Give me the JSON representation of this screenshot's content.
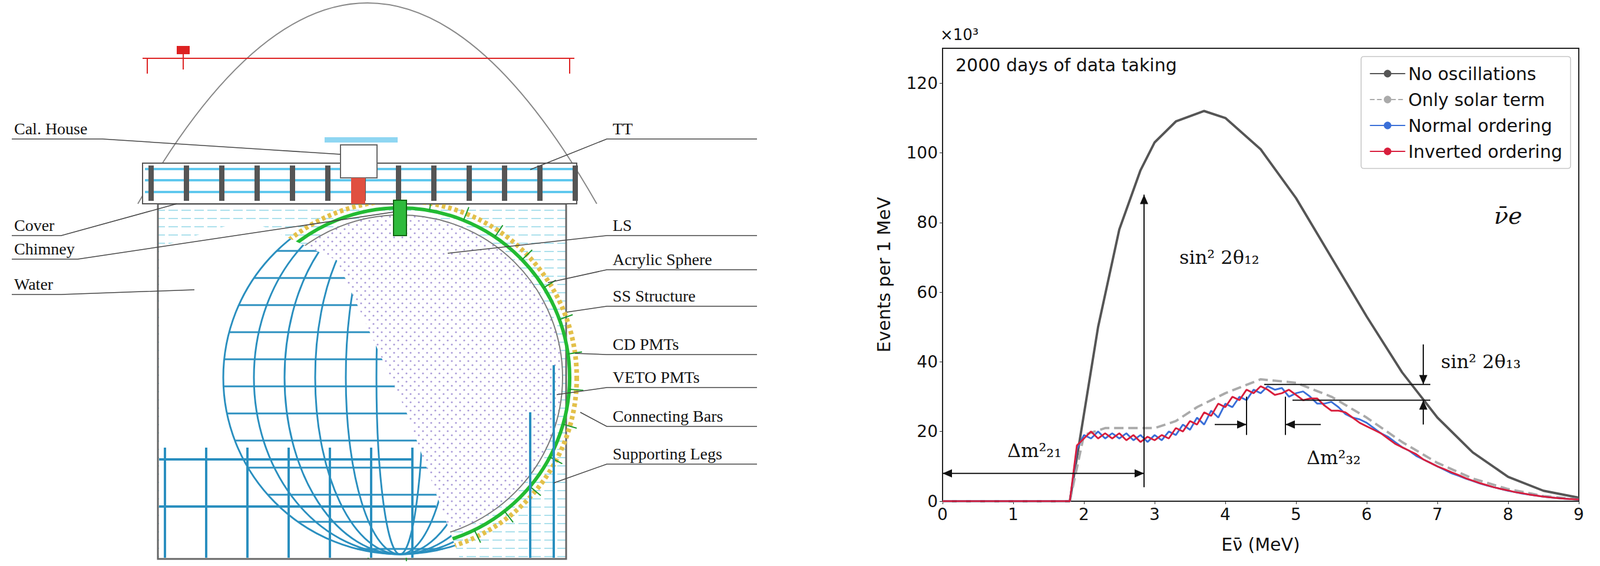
{
  "diagram": {
    "labels": [
      "Cal. House",
      "Cover",
      "Chimney",
      "Water",
      "TT",
      "LS",
      "Acrylic Sphere",
      "SS Structure",
      "CD PMTs",
      "VETO PMTs",
      "Connecting Bars",
      "Supporting Legs"
    ]
  },
  "chart_data": {
    "type": "line",
    "x_label": "Eν̄ (MeV)",
    "y_label": "Events per 1 MeV",
    "annotations": [
      "2000 days of data taking",
      "×10³",
      "sin² 2θ₁₂",
      "Δm²₂₁",
      "Δm²₃₂",
      "sin² 2θ₁₃",
      "ν̄e"
    ],
    "xlim": [
      0,
      9
    ],
    "xticks": [
      0,
      1,
      2,
      3,
      4,
      5,
      6,
      7,
      8,
      9
    ],
    "ylim": [
      0,
      130
    ],
    "yticks": [
      0,
      20,
      40,
      60,
      80,
      100,
      120
    ],
    "grid": false,
    "legend": "upper right",
    "series": [
      {
        "name": "No oscillations",
        "color": "#555555",
        "line_style": "solid",
        "x": [
          0,
          1.8,
          2.0,
          2.2,
          2.5,
          2.8,
          3.0,
          3.3,
          3.7,
          4.0,
          4.5,
          5.0,
          5.5,
          6.0,
          6.5,
          7.0,
          7.5,
          8.0,
          8.5,
          9.0
        ],
        "values": [
          0,
          0,
          25,
          50,
          78,
          95,
          103,
          109,
          112,
          110,
          101,
          87,
          70,
          53,
          37,
          24,
          14,
          7,
          3,
          1
        ]
      },
      {
        "name": "Only solar term",
        "color": "#aaaaaa",
        "line_style": "dashed",
        "x": [
          0,
          1.8,
          2.0,
          2.3,
          2.6,
          3.0,
          3.3,
          3.6,
          4.0,
          4.5,
          5.0,
          5.5,
          6.0,
          6.5,
          7.0,
          7.5,
          8.0,
          8.5,
          9.0
        ],
        "values": [
          0,
          0,
          19,
          21,
          21,
          21,
          23,
          27,
          31,
          35,
          34,
          30,
          24,
          17,
          11,
          6.5,
          3.5,
          1.5,
          0.5
        ]
      },
      {
        "name": "Normal ordering",
        "color": "#3a6fd8",
        "line_style": "solid",
        "x": [
          0,
          1.8,
          1.9,
          2.0,
          2.1,
          2.2,
          2.3,
          2.4,
          2.5,
          2.6,
          2.7,
          2.8,
          2.9,
          3.0,
          3.1,
          3.2,
          3.3,
          3.4,
          3.5,
          3.6,
          3.7,
          3.8,
          3.9,
          4.0,
          4.1,
          4.2,
          4.3,
          4.4,
          4.5,
          4.6,
          4.7,
          4.8,
          4.9,
          5.0,
          5.1,
          5.2,
          5.3,
          5.4,
          5.5,
          5.6,
          5.7,
          5.8,
          5.9,
          6.0,
          6.1,
          6.2,
          6.3,
          6.4,
          6.5,
          6.6,
          6.7,
          6.8,
          6.9,
          7.0,
          7.1,
          7.2,
          7.3,
          7.4,
          7.5,
          7.6,
          7.7,
          7.8,
          7.9,
          8.0,
          8.1,
          8.2,
          8.3,
          8.4,
          8.5,
          8.6,
          8.7,
          8.8,
          8.9,
          9.0
        ],
        "values": [
          0,
          0,
          15,
          19,
          18,
          20,
          18,
          19.5,
          18,
          19.5,
          17.5,
          19,
          17,
          19,
          17.5,
          20,
          19,
          22,
          20.5,
          24,
          22,
          26,
          24,
          28,
          27,
          30,
          29,
          32,
          31,
          33,
          32,
          32.5,
          30,
          31,
          31.5,
          30,
          28,
          28,
          28.5,
          27,
          25,
          24,
          23.5,
          22.5,
          21,
          19.5,
          18.5,
          17,
          15.5,
          14.5,
          13,
          12,
          11,
          10,
          9,
          8,
          7.3,
          6.5,
          5.8,
          5.1,
          4.5,
          4,
          3.5,
          3,
          2.6,
          2.2,
          1.9,
          1.6,
          1.3,
          1.1,
          0.9,
          0.7,
          0.6,
          0.5
        ]
      },
      {
        "name": "Inverted ordering",
        "color": "#d81e3c",
        "line_style": "solid",
        "x": [
          0,
          1.8,
          1.9,
          2.0,
          2.1,
          2.2,
          2.3,
          2.4,
          2.5,
          2.6,
          2.7,
          2.8,
          2.9,
          3.0,
          3.1,
          3.2,
          3.3,
          3.4,
          3.5,
          3.6,
          3.7,
          3.8,
          3.9,
          4.0,
          4.1,
          4.2,
          4.3,
          4.4,
          4.5,
          4.6,
          4.7,
          4.8,
          4.9,
          5.0,
          5.1,
          5.2,
          5.3,
          5.4,
          5.5,
          5.6,
          5.7,
          5.8,
          5.9,
          6.0,
          6.1,
          6.2,
          6.3,
          6.4,
          6.5,
          6.6,
          6.7,
          6.8,
          6.9,
          7.0,
          7.1,
          7.2,
          7.3,
          7.4,
          7.5,
          7.6,
          7.7,
          7.8,
          7.9,
          8.0,
          8.1,
          8.2,
          8.3,
          8.4,
          8.5,
          8.6,
          8.7,
          8.8,
          8.9,
          9.0
        ],
        "values": [
          0,
          0,
          16,
          18,
          20,
          18,
          19.5,
          18,
          19.5,
          17.5,
          19,
          17,
          18.5,
          17.5,
          19,
          18,
          21,
          20,
          23,
          22,
          25.5,
          24.5,
          28,
          27,
          30,
          29,
          32,
          31,
          33,
          32,
          30.5,
          31,
          32,
          30.5,
          29,
          29.5,
          29.5,
          27.5,
          26,
          26,
          25.5,
          24,
          22.5,
          21.5,
          20.5,
          19.5,
          18,
          16.5,
          15.5,
          14.5,
          13.5,
          12,
          11,
          10,
          9.2,
          8.3,
          7.5,
          6.6,
          5.9,
          5.2,
          4.6,
          4,
          3.5,
          3.1,
          2.6,
          2.3,
          1.9,
          1.6,
          1.3,
          1.1,
          0.9,
          0.7,
          0.6,
          0.5
        ]
      }
    ]
  }
}
